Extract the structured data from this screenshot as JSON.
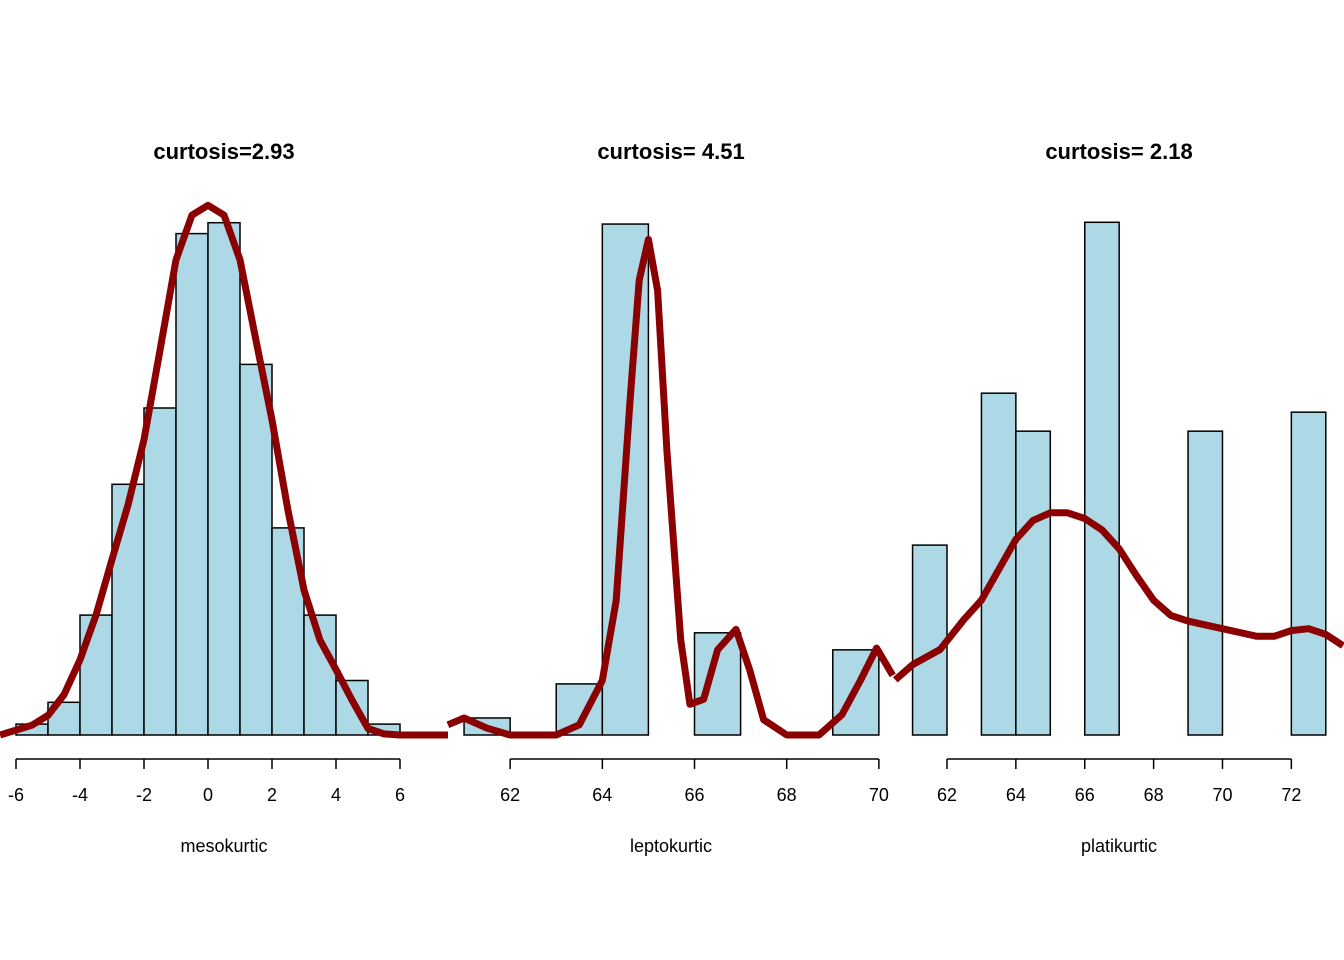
{
  "chart_data": [
    {
      "type": "histogram",
      "title": "curtosis=2.93",
      "xlabel": "mesokurtic",
      "bins": [
        -6,
        -5,
        -4,
        -3,
        -2,
        -1,
        0,
        1,
        2,
        3,
        4,
        5,
        6
      ],
      "values": [
        1,
        3,
        11,
        23,
        30,
        46,
        47,
        34,
        19,
        11,
        5,
        1
      ],
      "color": "#add8e6",
      "xlim": [
        -6.5,
        7.5
      ],
      "ylim": [
        0,
        50
      ],
      "xticks": [
        -6,
        -4,
        -2,
        0,
        2,
        4,
        6
      ],
      "density": {
        "color": "#8b0000",
        "x": [
          -6.5,
          -5.5,
          -5,
          -4.5,
          -4,
          -3.5,
          -3,
          -2.5,
          -2,
          -1.5,
          -1,
          -0.5,
          0,
          0.5,
          1,
          1.5,
          2,
          2.5,
          3,
          3.5,
          4,
          4.5,
          5,
          5.5,
          6,
          7.5
        ],
        "values": [
          0,
          0.9,
          1.8,
          3.7,
          6.9,
          11,
          16.1,
          21.1,
          27.1,
          35.3,
          43.6,
          47.7,
          48.6,
          47.7,
          43.6,
          36.2,
          28.9,
          20.6,
          13.3,
          8.7,
          6,
          3.2,
          0.6,
          0.1,
          0,
          0
        ]
      }
    },
    {
      "type": "histogram",
      "title": "curtosis= 4.51",
      "xlabel": "leptokurtic",
      "bins": [
        61,
        62,
        63,
        64,
        65,
        66,
        67,
        68,
        69,
        70
      ],
      "values": [
        1,
        0,
        3,
        30,
        0,
        6,
        0,
        0,
        5
      ],
      "color": "#add8e6",
      "xlim": [
        60.63,
        70.35
      ],
      "ylim": [
        0,
        32
      ],
      "xticks": [
        62,
        64,
        66,
        68,
        70
      ],
      "density": {
        "color": "#8b0000",
        "x": [
          60.65,
          61,
          61.5,
          62,
          63,
          63.5,
          64,
          64.3,
          64.6,
          64.8,
          65,
          65.2,
          65.4,
          65.7,
          65.9,
          66.2,
          66.5,
          66.9,
          67.2,
          67.5,
          68,
          68.7,
          69.2,
          69.6,
          69.95,
          70.3
        ],
        "values": [
          0.6,
          1,
          0.4,
          0,
          0,
          0.6,
          3.2,
          7.9,
          19.6,
          26.7,
          29.1,
          26.1,
          16.7,
          5.6,
          1.8,
          2.1,
          5,
          6.2,
          3.8,
          0.9,
          0,
          0,
          1.2,
          3.2,
          5.1,
          3.5
        ]
      }
    },
    {
      "type": "histogram",
      "title": "curtosis= 2.18",
      "xlabel": "platikurtic",
      "bins": [
        61,
        62,
        63,
        64,
        65,
        66,
        67,
        68,
        69,
        70,
        71,
        72,
        73
      ],
      "values": [
        10,
        0,
        18,
        16,
        0,
        27,
        0,
        0,
        16,
        0,
        0,
        17
      ],
      "color": "#add8e6",
      "xlim": [
        60.49,
        73.5
      ],
      "ylim": [
        0,
        28.7
      ],
      "xticks": [
        62,
        64,
        66,
        68,
        70,
        72
      ],
      "density": {
        "color": "#8b0000",
        "x": [
          60.5,
          61,
          61.8,
          62.5,
          63,
          63.5,
          64,
          64.5,
          65,
          65.5,
          66,
          66.5,
          67,
          67.5,
          68,
          68.5,
          69,
          69.5,
          70,
          70.5,
          71,
          71.5,
          72,
          72.5,
          73,
          73.5
        ],
        "values": [
          2.9,
          3.7,
          4.5,
          6.1,
          7.1,
          8.7,
          10.3,
          11.3,
          11.7,
          11.7,
          11.4,
          10.8,
          9.8,
          8.4,
          7.1,
          6.3,
          6,
          5.8,
          5.6,
          5.4,
          5.2,
          5.2,
          5.5,
          5.6,
          5.3,
          4.7
        ]
      }
    }
  ]
}
